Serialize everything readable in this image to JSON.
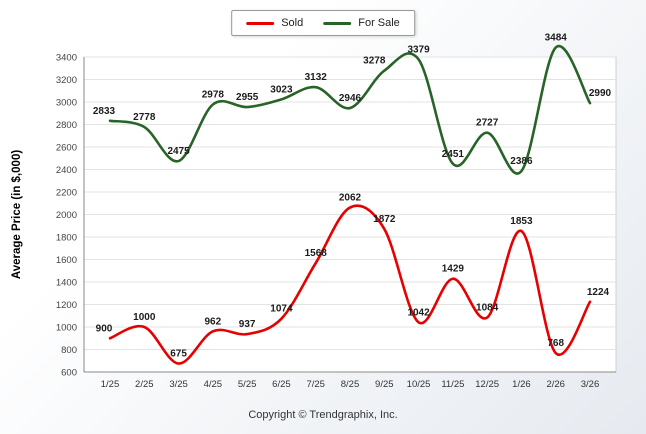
{
  "page": {
    "copyright": "Copyright © Trendgraphix, Inc."
  },
  "legend": {
    "items": [
      {
        "label": "Sold",
        "color": "#e60000"
      },
      {
        "label": "For Sale",
        "color": "#286428"
      }
    ]
  },
  "chart_data": {
    "type": "line",
    "title": "",
    "xlabel": "",
    "ylabel": "Average Price (in $,000)",
    "categories": [
      "1/25",
      "2/25",
      "3/25",
      "4/25",
      "5/25",
      "6/25",
      "7/25",
      "8/25",
      "9/25",
      "10/25",
      "11/25",
      "12/25",
      "1/26",
      "2/26",
      "3/26"
    ],
    "series": [
      {
        "name": "Sold",
        "color": "#e60000",
        "values": [
          900,
          1000,
          675,
          962,
          937,
          1074,
          1568,
          2062,
          1872,
          1042,
          1429,
          1084,
          1853,
          768,
          1224
        ]
      },
      {
        "name": "For Sale",
        "color": "#286428",
        "values": [
          2833,
          2778,
          2475,
          2978,
          2955,
          3023,
          3132,
          2946,
          3278,
          3379,
          2451,
          2727,
          2386,
          3484,
          2990
        ]
      }
    ],
    "ylim": [
      600,
      3400
    ],
    "ytick_step": 200,
    "grid": true,
    "smooth": true,
    "data_labels": true,
    "legend_position": "top-center"
  }
}
